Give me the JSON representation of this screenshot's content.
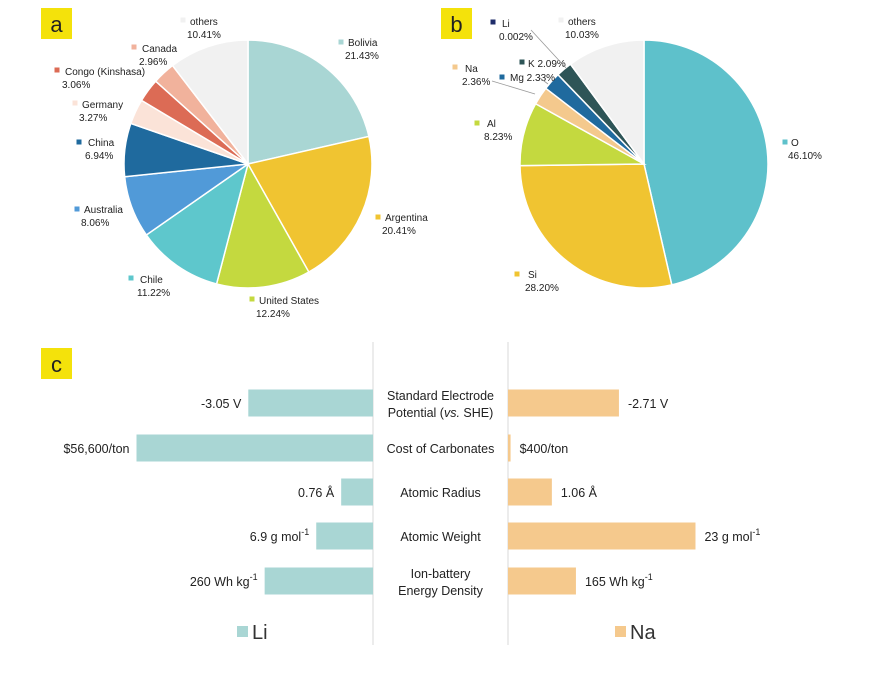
{
  "panels": {
    "a": "a",
    "b": "b",
    "c": "c"
  },
  "chart_data": [
    {
      "type": "pie",
      "panel": "a",
      "slices": [
        {
          "label": "Bolivia",
          "value": "21.43%",
          "pct": 21.43,
          "color": "#a9d6d4"
        },
        {
          "label": "Argentina",
          "value": "20.41%",
          "pct": 20.41,
          "color": "#f0c431"
        },
        {
          "label": "United States",
          "value": "12.24%",
          "pct": 12.24,
          "color": "#c4d93f"
        },
        {
          "label": "Chile",
          "value": "11.22%",
          "pct": 11.22,
          "color": "#5ec7cc"
        },
        {
          "label": "Australia",
          "value": "8.06%",
          "pct": 8.06,
          "color": "#519ad8"
        },
        {
          "label": "China",
          "value": "6.94%",
          "pct": 6.94,
          "color": "#1f6a9e"
        },
        {
          "label": "Germany",
          "value": "3.27%",
          "pct": 3.27,
          "color": "#fbe3d8"
        },
        {
          "label": "Congo (Kinshasa)",
          "value": "3.06%",
          "pct": 3.06,
          "color": "#dc6b55"
        },
        {
          "label": "Canada",
          "value": "2.96%",
          "pct": 2.96,
          "color": "#f1b29c"
        },
        {
          "label": "others",
          "value": "10.41%",
          "pct": 10.41,
          "color": "#f1f1f1"
        }
      ]
    },
    {
      "type": "pie",
      "panel": "b",
      "slices": [
        {
          "label": "O",
          "value": "46.10%",
          "pct": 46.1,
          "color": "#5ec1cb"
        },
        {
          "label": "Si",
          "value": "28.20%",
          "pct": 28.2,
          "color": "#f0c431"
        },
        {
          "label": "Al",
          "value": "8.23%",
          "pct": 8.23,
          "color": "#c4d93f"
        },
        {
          "label": "Na",
          "value": "2.36%",
          "pct": 2.36,
          "color": "#f4c98d"
        },
        {
          "label": "Mg",
          "value": "2.33%",
          "pct": 2.33,
          "color": "#1f6a9e"
        },
        {
          "label": "K",
          "value": "2.09%",
          "pct": 2.09,
          "color": "#2e5557"
        },
        {
          "label": "Li",
          "value": "0.002%",
          "pct": 0.002,
          "color": "#1f2d6a"
        },
        {
          "label": "others",
          "value": "10.03%",
          "pct": 10.03,
          "color": "#f1f1f1"
        }
      ]
    },
    {
      "type": "bar",
      "panel": "c",
      "orientation": "horizontal-diverging",
      "categories": [
        {
          "label_lines": [
            "Standard Electrode",
            "Potential (vs. SHE)"
          ]
        },
        {
          "label_lines": [
            "Cost of Carbonates"
          ]
        },
        {
          "label_lines": [
            "Atomic Radius"
          ]
        },
        {
          "label_lines": [
            "Atomic Weight"
          ]
        },
        {
          "label_lines": [
            "Ion-battery",
            "Energy Density"
          ]
        }
      ],
      "series": [
        {
          "name": "Li",
          "color": "#a9d6d4",
          "labels": [
            "-3.05 V",
            "$56,600/ton",
            "0.76 Å",
            "6.9  g mol",
            "260  Wh kg"
          ],
          "superscripts": [
            "",
            "",
            "",
            "-1",
            "-1"
          ],
          "rel": [
            0.145,
            0.275,
            0.037,
            0.066,
            0.126
          ]
        },
        {
          "name": "Na",
          "color": "#f5c98d",
          "labels": [
            "-2.71 V",
            "$400/ton",
            "1.06 Å",
            "23  g mol",
            "165  Wh kg"
          ],
          "superscripts": [
            "",
            "",
            "",
            "-1",
            "-1"
          ],
          "rel": [
            0.129,
            0.003,
            0.051,
            0.218,
            0.079
          ]
        }
      ]
    }
  ]
}
